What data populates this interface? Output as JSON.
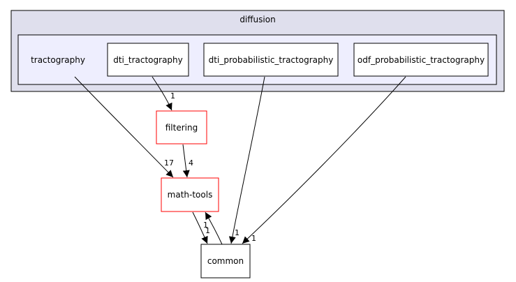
{
  "diagram": {
    "outer_cluster": {
      "label": "diffusion",
      "fill": "#dfdfed",
      "stroke": "#000000"
    },
    "inner_cluster": {
      "fill": "#eeeefe",
      "stroke": "#000000"
    },
    "nodes": {
      "tractography": {
        "label": "tractography"
      },
      "dti_tractography": {
        "label": "dti_tractography"
      },
      "dti_probabilistic_tractography": {
        "label": "dti_probabilistic_tractography"
      },
      "odf_probabilistic_tractography": {
        "label": "odf_probabilistic_tractography"
      },
      "filtering": {
        "label": "filtering"
      },
      "math_tools": {
        "label": "math-tools"
      },
      "common": {
        "label": "common"
      }
    },
    "edges": {
      "dti_tractography_to_filtering": {
        "from": "dti_tractography",
        "to": "filtering",
        "label": "1"
      },
      "tractography_to_math_tools": {
        "from": "tractography",
        "to": "math-tools",
        "label": "17"
      },
      "filtering_to_math_tools": {
        "from": "filtering",
        "to": "math-tools",
        "label": "4"
      },
      "math_tools_to_common": {
        "from": "math-tools",
        "to": "common",
        "label": "1"
      },
      "common_to_math_tools": {
        "from": "common",
        "to": "math-tools",
        "label": "1"
      },
      "dti_probabilistic_to_common": {
        "from": "dti_probabilistic_tractography",
        "to": "common",
        "label": "1"
      },
      "odf_probabilistic_to_common": {
        "from": "odf_probabilistic_tractography",
        "to": "common",
        "label": "1"
      }
    },
    "colors": {
      "highlight_border": "#ff0000",
      "normal_border": "#000000",
      "edge": "#000000"
    }
  }
}
